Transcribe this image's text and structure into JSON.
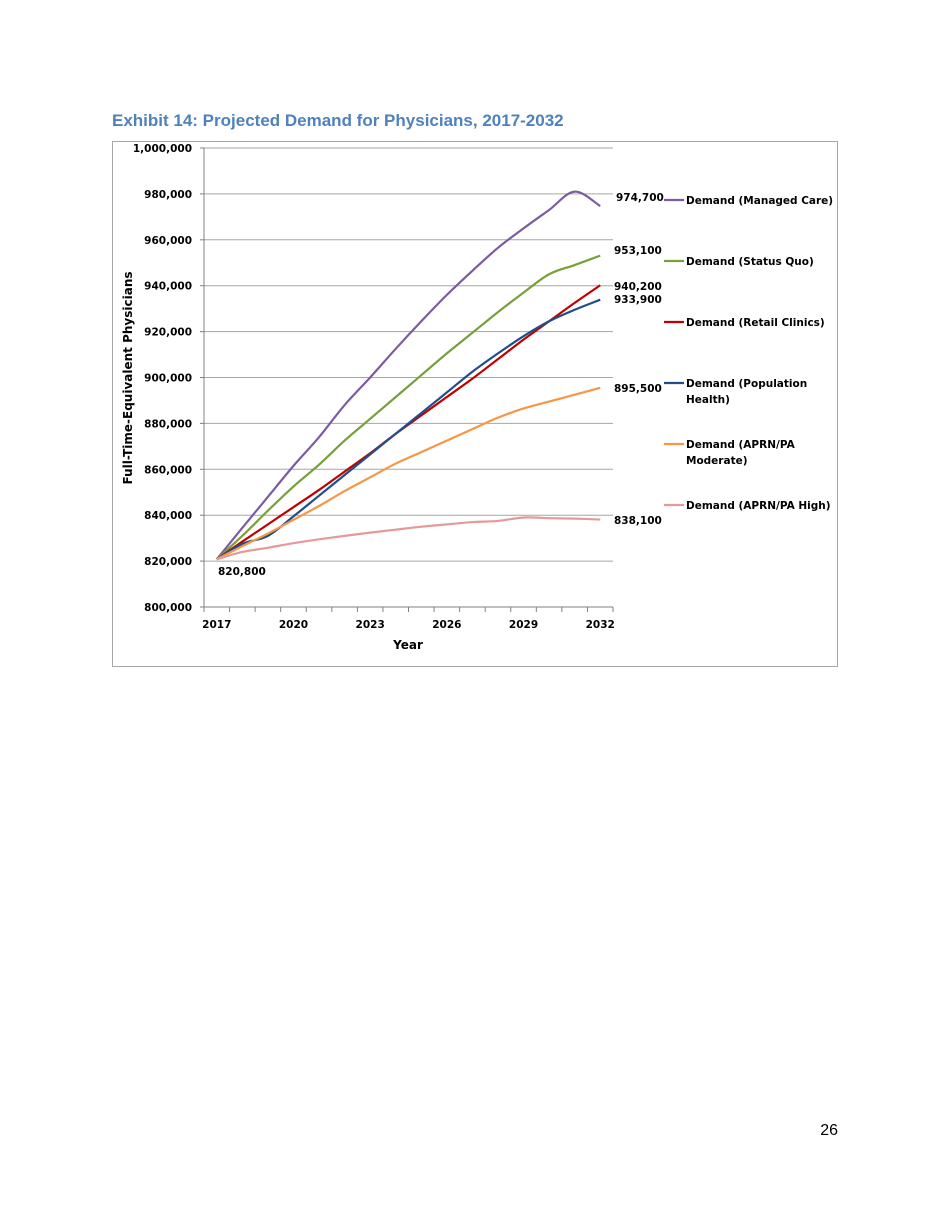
{
  "page": {
    "exhibit_title": "Exhibit 14: Projected Demand for Physicians, 2017-2032",
    "page_number": "26"
  },
  "chart_data": {
    "type": "line",
    "title": "Exhibit 14: Projected Demand for Physicians, 2017-2032",
    "xlabel": "Year",
    "ylabel": "Full-Time-Equivalent Physicians",
    "xlim": [
      2016.5,
      2032.5
    ],
    "ylim": [
      800000,
      1000000
    ],
    "x_ticks": [
      2017,
      2020,
      2023,
      2026,
      2029,
      2032
    ],
    "x_tick_labels": [
      "2017",
      "2020",
      "2023",
      "2026",
      "2029",
      "2032"
    ],
    "y_ticks": [
      800000,
      820000,
      840000,
      860000,
      880000,
      900000,
      920000,
      940000,
      960000,
      980000,
      1000000
    ],
    "y_tick_labels": [
      "800,000",
      "820,000",
      "840,000",
      "860,000",
      "880,000",
      "900,000",
      "920,000",
      "940,000",
      "960,000",
      "980,000",
      "1,000,000"
    ],
    "grid": true,
    "legend_placement": "right",
    "x": [
      2017,
      2018,
      2019,
      2020,
      2021,
      2022,
      2023,
      2024,
      2025,
      2026,
      2027,
      2028,
      2029,
      2030,
      2031,
      2032
    ],
    "series": [
      {
        "name": "Demand (Managed Care)",
        "color": "#7b5ba1",
        "values": [
          820800,
          834500,
          848000,
          861500,
          874000,
          888000,
          900000,
          912500,
          924500,
          936000,
          946500,
          956500,
          965000,
          973000,
          981000,
          974700
        ],
        "end_label": "974,700"
      },
      {
        "name": "Demand (Status Quo)",
        "color": "#77a03b",
        "values": [
          820800,
          831000,
          842000,
          852500,
          862000,
          872500,
          882000,
          891500,
          901000,
          910500,
          919500,
          928500,
          937000,
          945000,
          949000,
          953100
        ],
        "end_label": "953,100"
      },
      {
        "name": "Demand (Retail Clinics)",
        "color": "#c00000",
        "values": [
          820800,
          828500,
          836000,
          843500,
          851000,
          859000,
          867000,
          875500,
          883500,
          891500,
          899500,
          908000,
          916500,
          924500,
          932500,
          940200
        ],
        "end_label": "940,200"
      },
      {
        "name": "Demand (Population Health)",
        "color": "#1f4e8c",
        "values": [
          820800,
          827500,
          831000,
          839500,
          848500,
          857500,
          866500,
          875500,
          884500,
          893500,
          902500,
          910500,
          918000,
          924500,
          929500,
          933900
        ],
        "end_label": "933,900"
      },
      {
        "name": "Demand (APRN/PA Moderate)",
        "color": "#f79646",
        "values": [
          820800,
          826500,
          832000,
          838000,
          844000,
          850500,
          856500,
          862500,
          867500,
          872500,
          877500,
          882500,
          886500,
          889500,
          892500,
          895500
        ],
        "end_label": "895,500"
      },
      {
        "name": "Demand (APRN/PA High)",
        "color": "#e6999b",
        "values": [
          820800,
          824000,
          825800,
          827800,
          829500,
          831000,
          832400,
          833700,
          835000,
          836000,
          837000,
          837500,
          839000,
          838700,
          838500,
          838100
        ],
        "end_label": "838,100"
      }
    ],
    "start_label": "820,800"
  }
}
